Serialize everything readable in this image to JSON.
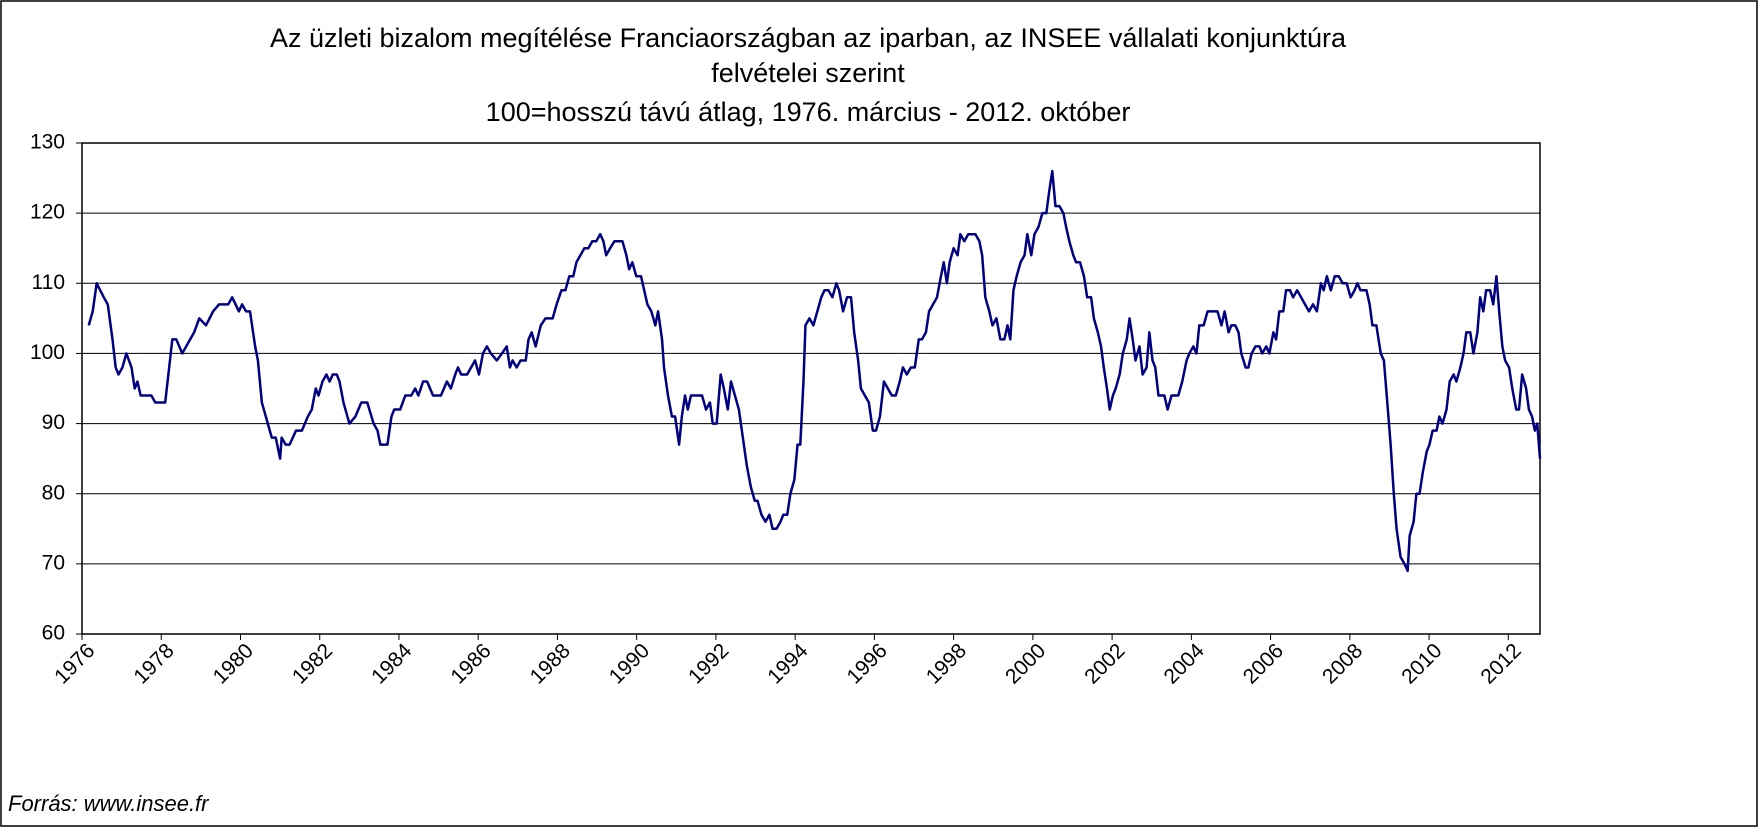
{
  "chart_data": {
    "type": "line",
    "title": [
      "Az üzleti bizalom megítélése Franciaországban az iparban, az INSEE vállalati konjunktúra",
      "felvételei szerint"
    ],
    "subtitle": "100=hosszú távú átlag, 1976. március - 2012. október",
    "source": "Forrás: www.insee.fr",
    "xlim": [
      1976,
      2012.8
    ],
    "xticks": [
      1976,
      1978,
      1980,
      1982,
      1984,
      1986,
      1988,
      1990,
      1992,
      1994,
      1996,
      1998,
      2000,
      2002,
      2004,
      2006,
      2008,
      2010,
      2012
    ],
    "ylim": [
      60,
      130
    ],
    "yticks": [
      60,
      70,
      80,
      90,
      100,
      110,
      120,
      130
    ],
    "grid": true,
    "series": [
      {
        "color": "#000080",
        "x": [
          1976.17,
          1976.27,
          1976.37,
          1976.55,
          1976.65,
          1976.77,
          1976.85,
          1976.92,
          1977.02,
          1977.12,
          1977.25,
          1977.33,
          1977.4,
          1977.48,
          1977.75,
          1977.85,
          1978.1,
          1978.2,
          1978.28,
          1978.38,
          1978.53,
          1978.73,
          1978.83,
          1978.96,
          1979.13,
          1979.31,
          1979.46,
          1979.69,
          1979.79,
          1979.96,
          1980.04,
          1980.14,
          1980.24,
          1980.37,
          1980.44,
          1980.54,
          1980.64,
          1980.79,
          1980.89,
          1981.0,
          1981.04,
          1981.14,
          1981.24,
          1981.4,
          1981.55,
          1981.7,
          1981.8,
          1981.9,
          1981.97,
          1982.07,
          1982.17,
          1982.25,
          1982.33,
          1982.43,
          1982.5,
          1982.6,
          1982.75,
          1982.9,
          1983.05,
          1983.2,
          1983.36,
          1983.46,
          1983.53,
          1983.71,
          1983.81,
          1983.88,
          1984.03,
          1984.16,
          1984.31,
          1984.41,
          1984.49,
          1984.61,
          1984.71,
          1984.86,
          1985.06,
          1985.21,
          1985.31,
          1985.42,
          1985.49,
          1985.57,
          1985.72,
          1985.82,
          1985.92,
          1986.02,
          1986.12,
          1986.22,
          1986.32,
          1986.47,
          1986.6,
          1986.72,
          1986.8,
          1986.87,
          1986.97,
          1987.07,
          1987.2,
          1987.27,
          1987.35,
          1987.45,
          1987.58,
          1987.7,
          1987.88,
          1987.98,
          1988.1,
          1988.2,
          1988.3,
          1988.4,
          1988.48,
          1988.58,
          1988.68,
          1988.78,
          1988.88,
          1988.98,
          1989.08,
          1989.16,
          1989.23,
          1989.33,
          1989.44,
          1989.64,
          1989.74,
          1989.81,
          1989.89,
          1989.99,
          1990.11,
          1990.19,
          1990.27,
          1990.37,
          1990.47,
          1990.54,
          1990.64,
          1990.69,
          1990.79,
          1990.89,
          1990.97,
          1991.07,
          1991.14,
          1991.22,
          1991.29,
          1991.37,
          1991.65,
          1991.75,
          1991.85,
          1991.92,
          1992.02,
          1992.12,
          1992.2,
          1992.3,
          1992.38,
          1992.48,
          1992.58,
          1992.68,
          1992.78,
          1992.88,
          1992.98,
          1993.05,
          1993.15,
          1993.25,
          1993.35,
          1993.43,
          1993.53,
          1993.63,
          1993.7,
          1993.8,
          1993.88,
          1993.98,
          1994.06,
          1994.13,
          1994.21,
          1994.26,
          1994.36,
          1994.46,
          1994.56,
          1994.66,
          1994.74,
          1994.84,
          1994.94,
          1995.04,
          1995.11,
          1995.21,
          1995.31,
          1995.41,
          1995.49,
          1995.59,
          1995.66,
          1995.76,
          1995.86,
          1995.96,
          1996.04,
          1996.14,
          1996.24,
          1996.34,
          1996.44,
          1996.54,
          1996.64,
          1996.72,
          1996.82,
          1996.92,
          1997.02,
          1997.12,
          1997.2,
          1997.3,
          1997.38,
          1997.48,
          1997.58,
          1997.68,
          1997.75,
          1997.83,
          1997.9,
          1998.0,
          1998.1,
          1998.17,
          1998.27,
          1998.37,
          1998.55,
          1998.65,
          1998.72,
          1998.8,
          1998.9,
          1998.98,
          1999.08,
          1999.18,
          1999.28,
          1999.36,
          1999.43,
          1999.51,
          1999.59,
          1999.69,
          1999.79,
          1999.86,
          1999.96,
          2000.04,
          2000.14,
          2000.24,
          2000.34,
          2000.41,
          2000.49,
          2000.57,
          2000.67,
          2000.77,
          2000.84,
          2000.92,
          2001.02,
          2001.09,
          2001.19,
          2001.29,
          2001.37,
          2001.47,
          2001.54,
          2001.64,
          2001.72,
          2001.79,
          2001.87,
          2001.94,
          2002.02,
          2002.09,
          2002.19,
          2002.27,
          2002.37,
          2002.44,
          2002.52,
          2002.59,
          2002.69,
          2002.77,
          2002.87,
          2002.94,
          2003.02,
          2003.09,
          2003.17,
          2003.32,
          2003.4,
          2003.5,
          2003.67,
          2003.77,
          2003.88,
          2003.95,
          2004.05,
          2004.13,
          2004.2,
          2004.31,
          2004.41,
          2004.66,
          2004.76,
          2004.84,
          2004.94,
          2005.01,
          2005.11,
          2005.19,
          2005.26,
          2005.37,
          2005.44,
          2005.52,
          2005.62,
          2005.72,
          2005.79,
          2005.89,
          2005.97,
          2006.07,
          2006.14,
          2006.22,
          2006.32,
          2006.39,
          2006.49,
          2006.57,
          2006.67,
          2006.77,
          2006.87,
          2006.97,
          2007.07,
          2007.17,
          2007.27,
          2007.34,
          2007.42,
          2007.52,
          2007.62,
          2007.72,
          2007.82,
          2007.92,
          2008.02,
          2008.12,
          2008.19,
          2008.27,
          2008.42,
          2008.5,
          2008.57,
          2008.67,
          2008.78,
          2008.86,
          2008.96,
          2009.03,
          2009.11,
          2009.18,
          2009.28,
          2009.38,
          2009.46,
          2009.51,
          2009.61,
          2009.68,
          2009.76,
          2009.84,
          2009.94,
          2010.01,
          2010.09,
          2010.19,
          2010.26,
          2010.34,
          2010.44,
          2010.52,
          2010.62,
          2010.69,
          2010.79,
          2010.87,
          2010.94,
          2011.04,
          2011.12,
          2011.22,
          2011.29,
          2011.37,
          2011.44,
          2011.54,
          2011.62,
          2011.7,
          2011.77,
          2011.85,
          2011.92,
          2012.02,
          2012.1,
          2012.2,
          2012.27,
          2012.35,
          2012.45,
          2012.52,
          2012.6,
          2012.67,
          2012.73,
          2012.8
        ],
        "values": [
          104,
          106,
          110,
          108,
          107,
          102,
          98,
          97,
          98,
          100,
          98,
          95,
          96,
          94,
          94,
          93,
          93,
          98,
          102,
          102,
          100,
          102,
          103,
          105,
          104,
          106,
          107,
          107,
          108,
          106,
          107,
          106,
          106,
          101,
          99,
          93,
          91,
          88,
          88,
          85,
          88,
          87,
          87,
          89,
          89,
          91,
          92,
          95,
          94,
          96,
          97,
          96,
          97,
          97,
          96,
          93,
          90,
          91,
          93,
          93,
          90,
          89,
          87,
          87,
          91,
          92,
          92,
          94,
          94,
          95,
          94,
          96,
          96,
          94,
          94,
          96,
          95,
          97,
          98,
          97,
          97,
          98,
          99,
          97,
          100,
          101,
          100,
          99,
          100,
          101,
          98,
          99,
          98,
          99,
          99,
          102,
          103,
          101,
          104,
          105,
          105,
          107,
          109,
          109,
          111,
          111,
          113,
          114,
          115,
          115,
          116,
          116,
          117,
          116,
          114,
          115,
          116,
          116,
          114,
          112,
          113,
          111,
          111,
          109,
          107,
          106,
          104,
          106,
          102,
          98,
          94,
          91,
          91,
          87,
          91,
          94,
          92,
          94,
          94,
          92,
          93,
          90,
          90,
          97,
          95,
          92,
          96,
          94,
          92,
          88,
          84,
          81,
          79,
          79,
          77,
          76,
          77,
          75,
          75,
          76,
          77,
          77,
          80,
          82,
          87,
          87,
          96,
          104,
          105,
          104,
          106,
          108,
          109,
          109,
          108,
          110,
          109,
          106,
          108,
          108,
          103,
          99,
          95,
          94,
          93,
          89,
          89,
          91,
          96,
          95,
          94,
          94,
          96,
          98,
          97,
          98,
          98,
          102,
          102,
          103,
          106,
          107,
          108,
          111,
          113,
          110,
          113,
          115,
          114,
          117,
          116,
          117,
          117,
          116,
          114,
          108,
          106,
          104,
          105,
          102,
          102,
          104,
          102,
          109,
          111,
          113,
          114,
          117,
          114,
          117,
          118,
          120,
          120,
          123,
          126,
          121,
          121,
          120,
          118,
          116,
          114,
          113,
          113,
          111,
          108,
          108,
          105,
          103,
          101,
          98,
          95,
          92,
          94,
          95,
          97,
          100,
          102,
          105,
          102,
          99,
          101,
          97,
          98,
          103,
          99,
          98,
          94,
          94,
          92,
          94,
          94,
          96,
          99,
          100,
          101,
          100,
          104,
          104,
          106,
          106,
          104,
          106,
          103,
          104,
          104,
          103,
          100,
          98,
          98,
          100,
          101,
          101,
          100,
          101,
          100,
          103,
          102,
          106,
          106,
          109,
          109,
          108,
          109,
          108,
          107,
          106,
          107,
          106,
          110,
          109,
          111,
          109,
          111,
          111,
          110,
          110,
          108,
          109,
          110,
          109,
          109,
          107,
          104,
          104,
          100,
          99,
          92,
          87,
          80,
          75,
          71,
          70,
          69,
          74,
          76,
          80,
          80,
          83,
          86,
          87,
          89,
          89,
          91,
          90,
          92,
          96,
          97,
          96,
          98,
          100,
          103,
          103,
          100,
          103,
          108,
          106,
          109,
          109,
          107,
          111,
          106,
          101,
          99,
          98,
          95,
          92,
          92,
          97,
          95,
          92,
          91,
          89,
          90,
          85
        ]
      }
    ]
  }
}
